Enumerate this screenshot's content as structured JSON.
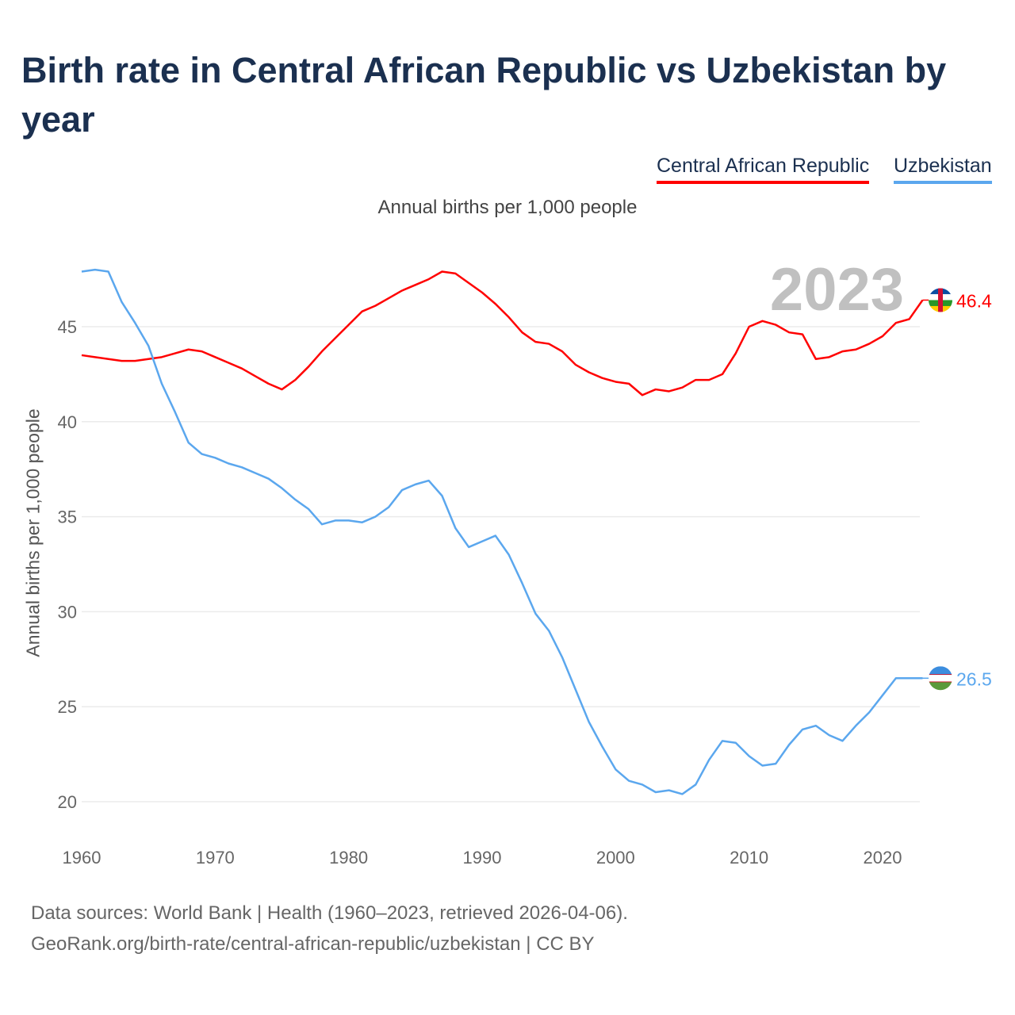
{
  "title": "Birth rate in Central African Republic vs Uzbekistan by year",
  "legend": [
    {
      "label": "Central African Republic",
      "color": "#ff0000"
    },
    {
      "label": "Uzbekistan",
      "color": "#5ba7ee"
    }
  ],
  "subtitle": "Annual births per 1,000 people",
  "source_line1": "Data sources: World Bank | Health (1960–2023, retrieved 2026-04-06).",
  "source_line2": "GeoRank.org/birth-rate/central-african-republic/uzbekistan | CC BY",
  "chart_data": {
    "type": "line",
    "title": "Birth rate in Central African Republic vs Uzbekistan by year",
    "ylabel": "Annual births per 1,000 people",
    "xlabel": "",
    "year_label": "2023",
    "xlim": [
      1960,
      2023
    ],
    "ylim": [
      18.5,
      49
    ],
    "x_ticks": [
      1960,
      1970,
      1980,
      1990,
      2000,
      2010,
      2020
    ],
    "y_ticks": [
      20,
      25,
      30,
      35,
      40,
      45
    ],
    "grid": true,
    "legend_position": "top-right",
    "x": [
      1960,
      1961,
      1962,
      1963,
      1964,
      1965,
      1966,
      1967,
      1968,
      1969,
      1970,
      1971,
      1972,
      1973,
      1974,
      1975,
      1976,
      1977,
      1978,
      1979,
      1980,
      1981,
      1982,
      1983,
      1984,
      1985,
      1986,
      1987,
      1988,
      1989,
      1990,
      1991,
      1992,
      1993,
      1994,
      1995,
      1996,
      1997,
      1998,
      1999,
      2000,
      2001,
      2002,
      2003,
      2004,
      2005,
      2006,
      2007,
      2008,
      2009,
      2010,
      2011,
      2012,
      2013,
      2014,
      2015,
      2016,
      2017,
      2018,
      2019,
      2020,
      2021,
      2022,
      2023
    ],
    "series": [
      {
        "name": "Central African Republic",
        "color": "#ff0000",
        "end_label": "46.4",
        "values": [
          43.5,
          43.4,
          43.3,
          43.2,
          43.2,
          43.3,
          43.4,
          43.6,
          43.8,
          43.7,
          43.4,
          43.1,
          42.8,
          42.4,
          42.0,
          41.7,
          42.2,
          42.9,
          43.7,
          44.4,
          45.1,
          45.8,
          46.1,
          46.5,
          46.9,
          47.2,
          47.5,
          47.9,
          47.8,
          47.3,
          46.8,
          46.2,
          45.5,
          44.7,
          44.2,
          44.1,
          43.7,
          43.0,
          42.6,
          42.3,
          42.1,
          42.0,
          41.4,
          41.7,
          41.6,
          41.8,
          42.2,
          42.2,
          42.5,
          43.6,
          45.0,
          45.3,
          45.1,
          44.7,
          44.6,
          43.3,
          43.4,
          43.7,
          43.8,
          44.1,
          44.5,
          45.2,
          45.4,
          46.4
        ]
      },
      {
        "name": "Uzbekistan",
        "color": "#5ba7ee",
        "end_label": "26.5",
        "values": [
          47.9,
          48.0,
          47.9,
          46.3,
          45.2,
          44.0,
          42.0,
          40.5,
          38.9,
          38.3,
          38.1,
          37.8,
          37.6,
          37.3,
          37.0,
          36.5,
          35.9,
          35.4,
          34.6,
          34.8,
          34.8,
          34.7,
          35.0,
          35.5,
          36.4,
          36.7,
          36.9,
          36.1,
          34.4,
          33.4,
          33.7,
          34.0,
          33.0,
          31.5,
          29.9,
          29.0,
          27.6,
          25.9,
          24.2,
          22.9,
          21.7,
          21.1,
          20.9,
          20.5,
          20.6,
          20.4,
          20.9,
          22.2,
          23.2,
          23.1,
          22.4,
          21.9,
          22.0,
          23.0,
          23.8,
          24.0,
          23.5,
          23.2,
          24.0,
          24.7,
          25.6,
          26.5,
          26.5,
          26.5
        ]
      }
    ]
  }
}
